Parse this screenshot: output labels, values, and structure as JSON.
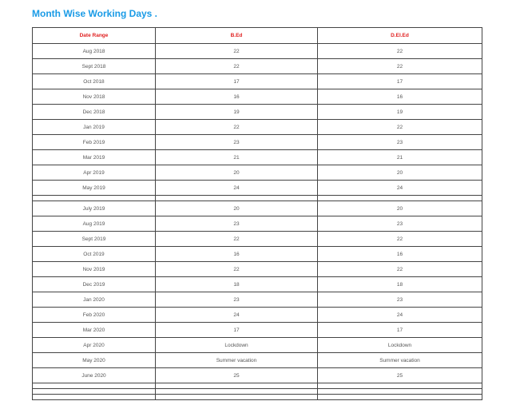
{
  "title": "Month Wise Working Days .",
  "colors": {
    "title": "#1a9be6",
    "header": "#e02020"
  },
  "table": {
    "headers": [
      "Date Range",
      "B.Ed",
      "D.El.Ed"
    ],
    "rows": [
      [
        "Aug 2018",
        "22",
        "22"
      ],
      [
        "Sept 2018",
        "22",
        "22"
      ],
      [
        "Oct 2018",
        "17",
        "17"
      ],
      [
        "Nov 2018",
        "16",
        "16"
      ],
      [
        "Dec 2018",
        "19",
        "19"
      ],
      [
        "Jan 2019",
        "22",
        "22"
      ],
      [
        "Feb 2019",
        "23",
        "23"
      ],
      [
        "Mar 2019",
        "21",
        "21"
      ],
      [
        "Apr 2019",
        "20",
        "20"
      ],
      [
        "May 2019",
        "24",
        "24"
      ],
      [
        "",
        "",
        ""
      ],
      [
        "July 2019",
        "20",
        "20"
      ],
      [
        "Aug 2019",
        "23",
        "23"
      ],
      [
        "Sept 2019",
        "22",
        "22"
      ],
      [
        "Oct 2019",
        "16",
        "16"
      ],
      [
        "Nov 2019",
        "22",
        "22"
      ],
      [
        "Dec 2019",
        "18",
        "18"
      ],
      [
        "Jan 2020",
        "23",
        "23"
      ],
      [
        "Feb 2020",
        "24",
        "24"
      ],
      [
        "Mar 2020",
        "17",
        "17"
      ],
      [
        "Apr 2020",
        "Lockdown",
        "Lockdown"
      ],
      [
        "May 2020",
        "Summer vacation",
        "Summer vacation"
      ],
      [
        "June 2020",
        "25",
        "25"
      ],
      [
        "",
        "",
        ""
      ],
      [
        "",
        "",
        ""
      ],
      [
        "",
        "",
        ""
      ]
    ]
  }
}
